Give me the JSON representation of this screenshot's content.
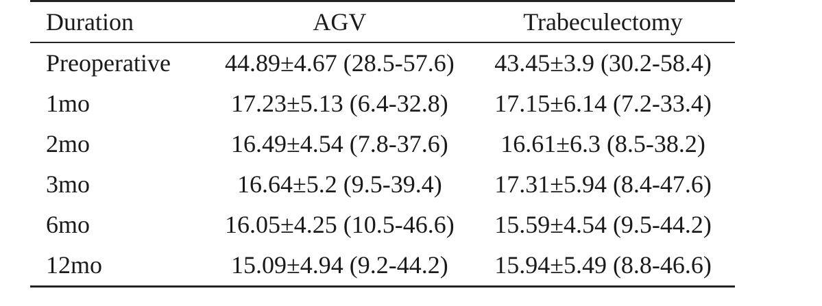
{
  "table": {
    "headers": [
      "Duration",
      "AGV",
      "Trabeculectomy"
    ],
    "rows": [
      [
        "Preoperative",
        "44.89±4.67 (28.5-57.6)",
        "43.45±3.9 (30.2-58.4)"
      ],
      [
        "1mo",
        "17.23±5.13 (6.4-32.8)",
        "17.15±6.14 (7.2-33.4)"
      ],
      [
        "2mo",
        "16.49±4.54 (7.8-37.6)",
        "16.61±6.3 (8.5-38.2)"
      ],
      [
        "3mo",
        "16.64±5.2 (9.5-39.4)",
        "17.31±5.94 (8.4-47.6)"
      ],
      [
        "6mo",
        "16.05±4.25 (10.5-46.6)",
        "15.59±4.54 (9.5-44.2)"
      ],
      [
        "12mo",
        "15.09±4.94 (9.2-44.2)",
        "15.94±5.49 (8.8-46.6)"
      ]
    ]
  }
}
